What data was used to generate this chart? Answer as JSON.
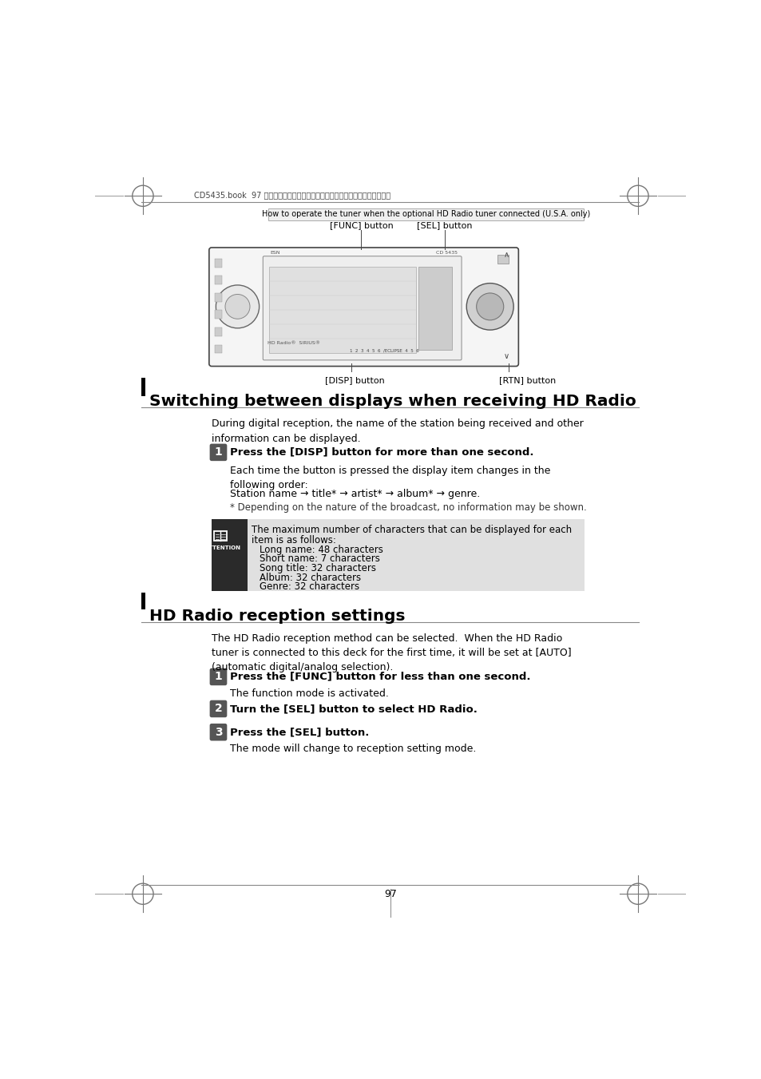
{
  "page_bg": "#ffffff",
  "page_width": 9.54,
  "page_height": 13.51,
  "dpi": 100,
  "header_bar_text": "How to operate the tuner when the optional HD Radio tuner connected (U.S.A. only)",
  "japanese_header": "CD5435.book  97 ページ　２００４年１２月１１日　土曜日　午後５晎２９分",
  "func_button_label": "[FUNC] button",
  "sel_button_label": "[SEL] button",
  "disp_button_label": "[DISP] button",
  "rtn_button_label": "[RTN] button",
  "section1_title": "Switching between displays when receiving HD Radio",
  "section1_intro": "During digital reception, the name of the station being received and other\ninformation can be displayed.",
  "step1_text": "Press the [DISP] button for more than one second.",
  "step1_body1": "Each time the button is pressed the display item changes in the\nfollowing order:",
  "step1_body2": "Station name → title* → artist* → album* → genre.",
  "step1_body3": "* Depending on the nature of the broadcast, no information may be shown.",
  "attention_line1": "The maximum number of characters that can be displayed for each",
  "attention_line2": "item is as follows:",
  "attention_items": [
    "Long name: 48 characters",
    "Short name: 7 characters",
    "Song title: 32 characters",
    "Album: 32 characters",
    "Genre: 32 characters"
  ],
  "section2_title": "HD Radio reception settings",
  "section2_intro": "The HD Radio reception method can be selected.  When the HD Radio\ntuner is connected to this deck for the first time, it will be set at [AUTO]\n(automatic digital/analog selection).",
  "s2_step1_text": "Press the [FUNC] button for less than one second.",
  "s2_step1_body": "The function mode is activated.",
  "s2_step2_text": "Turn the [SEL] button to select HD Radio.",
  "s2_step3_text": "Press the [SEL] button.",
  "s2_step3_body": "The mode will change to reception setting mode.",
  "page_number": "97",
  "step_badge_color": "#555555",
  "attention_bg_color": "#e0e0e0",
  "attention_badge_color": "#2a2a2a"
}
